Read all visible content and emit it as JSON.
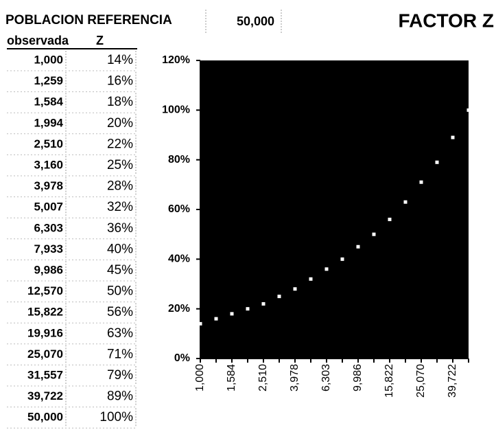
{
  "header": {
    "title": "POBLACION REFERENCIA",
    "reference": "50,000",
    "factor": "FACTOR Z"
  },
  "table": {
    "columns": [
      "observada",
      "Z"
    ],
    "rows": [
      [
        "1,000",
        "14%"
      ],
      [
        "1,259",
        "16%"
      ],
      [
        "1,584",
        "18%"
      ],
      [
        "1,994",
        "20%"
      ],
      [
        "2,510",
        "22%"
      ],
      [
        "3,160",
        "25%"
      ],
      [
        "3,978",
        "28%"
      ],
      [
        "5,007",
        "32%"
      ],
      [
        "6,303",
        "36%"
      ],
      [
        "7,933",
        "40%"
      ],
      [
        "9,986",
        "45%"
      ],
      [
        "12,570",
        "50%"
      ],
      [
        "15,822",
        "56%"
      ],
      [
        "19,916",
        "63%"
      ],
      [
        "25,070",
        "71%"
      ],
      [
        "31,557",
        "79%"
      ],
      [
        "39,722",
        "89%"
      ],
      [
        "50,000",
        "100%"
      ]
    ]
  },
  "chart_data": {
    "type": "scatter",
    "categories": [
      "1,000",
      null,
      "1,584",
      null,
      "2,510",
      null,
      "3,978",
      null,
      "6,303",
      null,
      "9,986",
      null,
      "15,822",
      null,
      "25,070",
      null,
      "39,722",
      null
    ],
    "values": [
      14,
      16,
      18,
      20,
      22,
      25,
      28,
      32,
      36,
      40,
      45,
      50,
      56,
      63,
      71,
      79,
      89,
      100
    ],
    "color": "#ffffff",
    "background": "#000000",
    "ylim": [
      0,
      120
    ],
    "yticks": [
      {
        "value": 0,
        "label": "0%"
      },
      {
        "value": 20,
        "label": "20%"
      },
      {
        "value": 40,
        "label": "40%"
      },
      {
        "value": 60,
        "label": "60%"
      },
      {
        "value": 80,
        "label": "80%"
      },
      {
        "value": 100,
        "label": "100%"
      },
      {
        "value": 120,
        "label": "120%"
      }
    ]
  }
}
